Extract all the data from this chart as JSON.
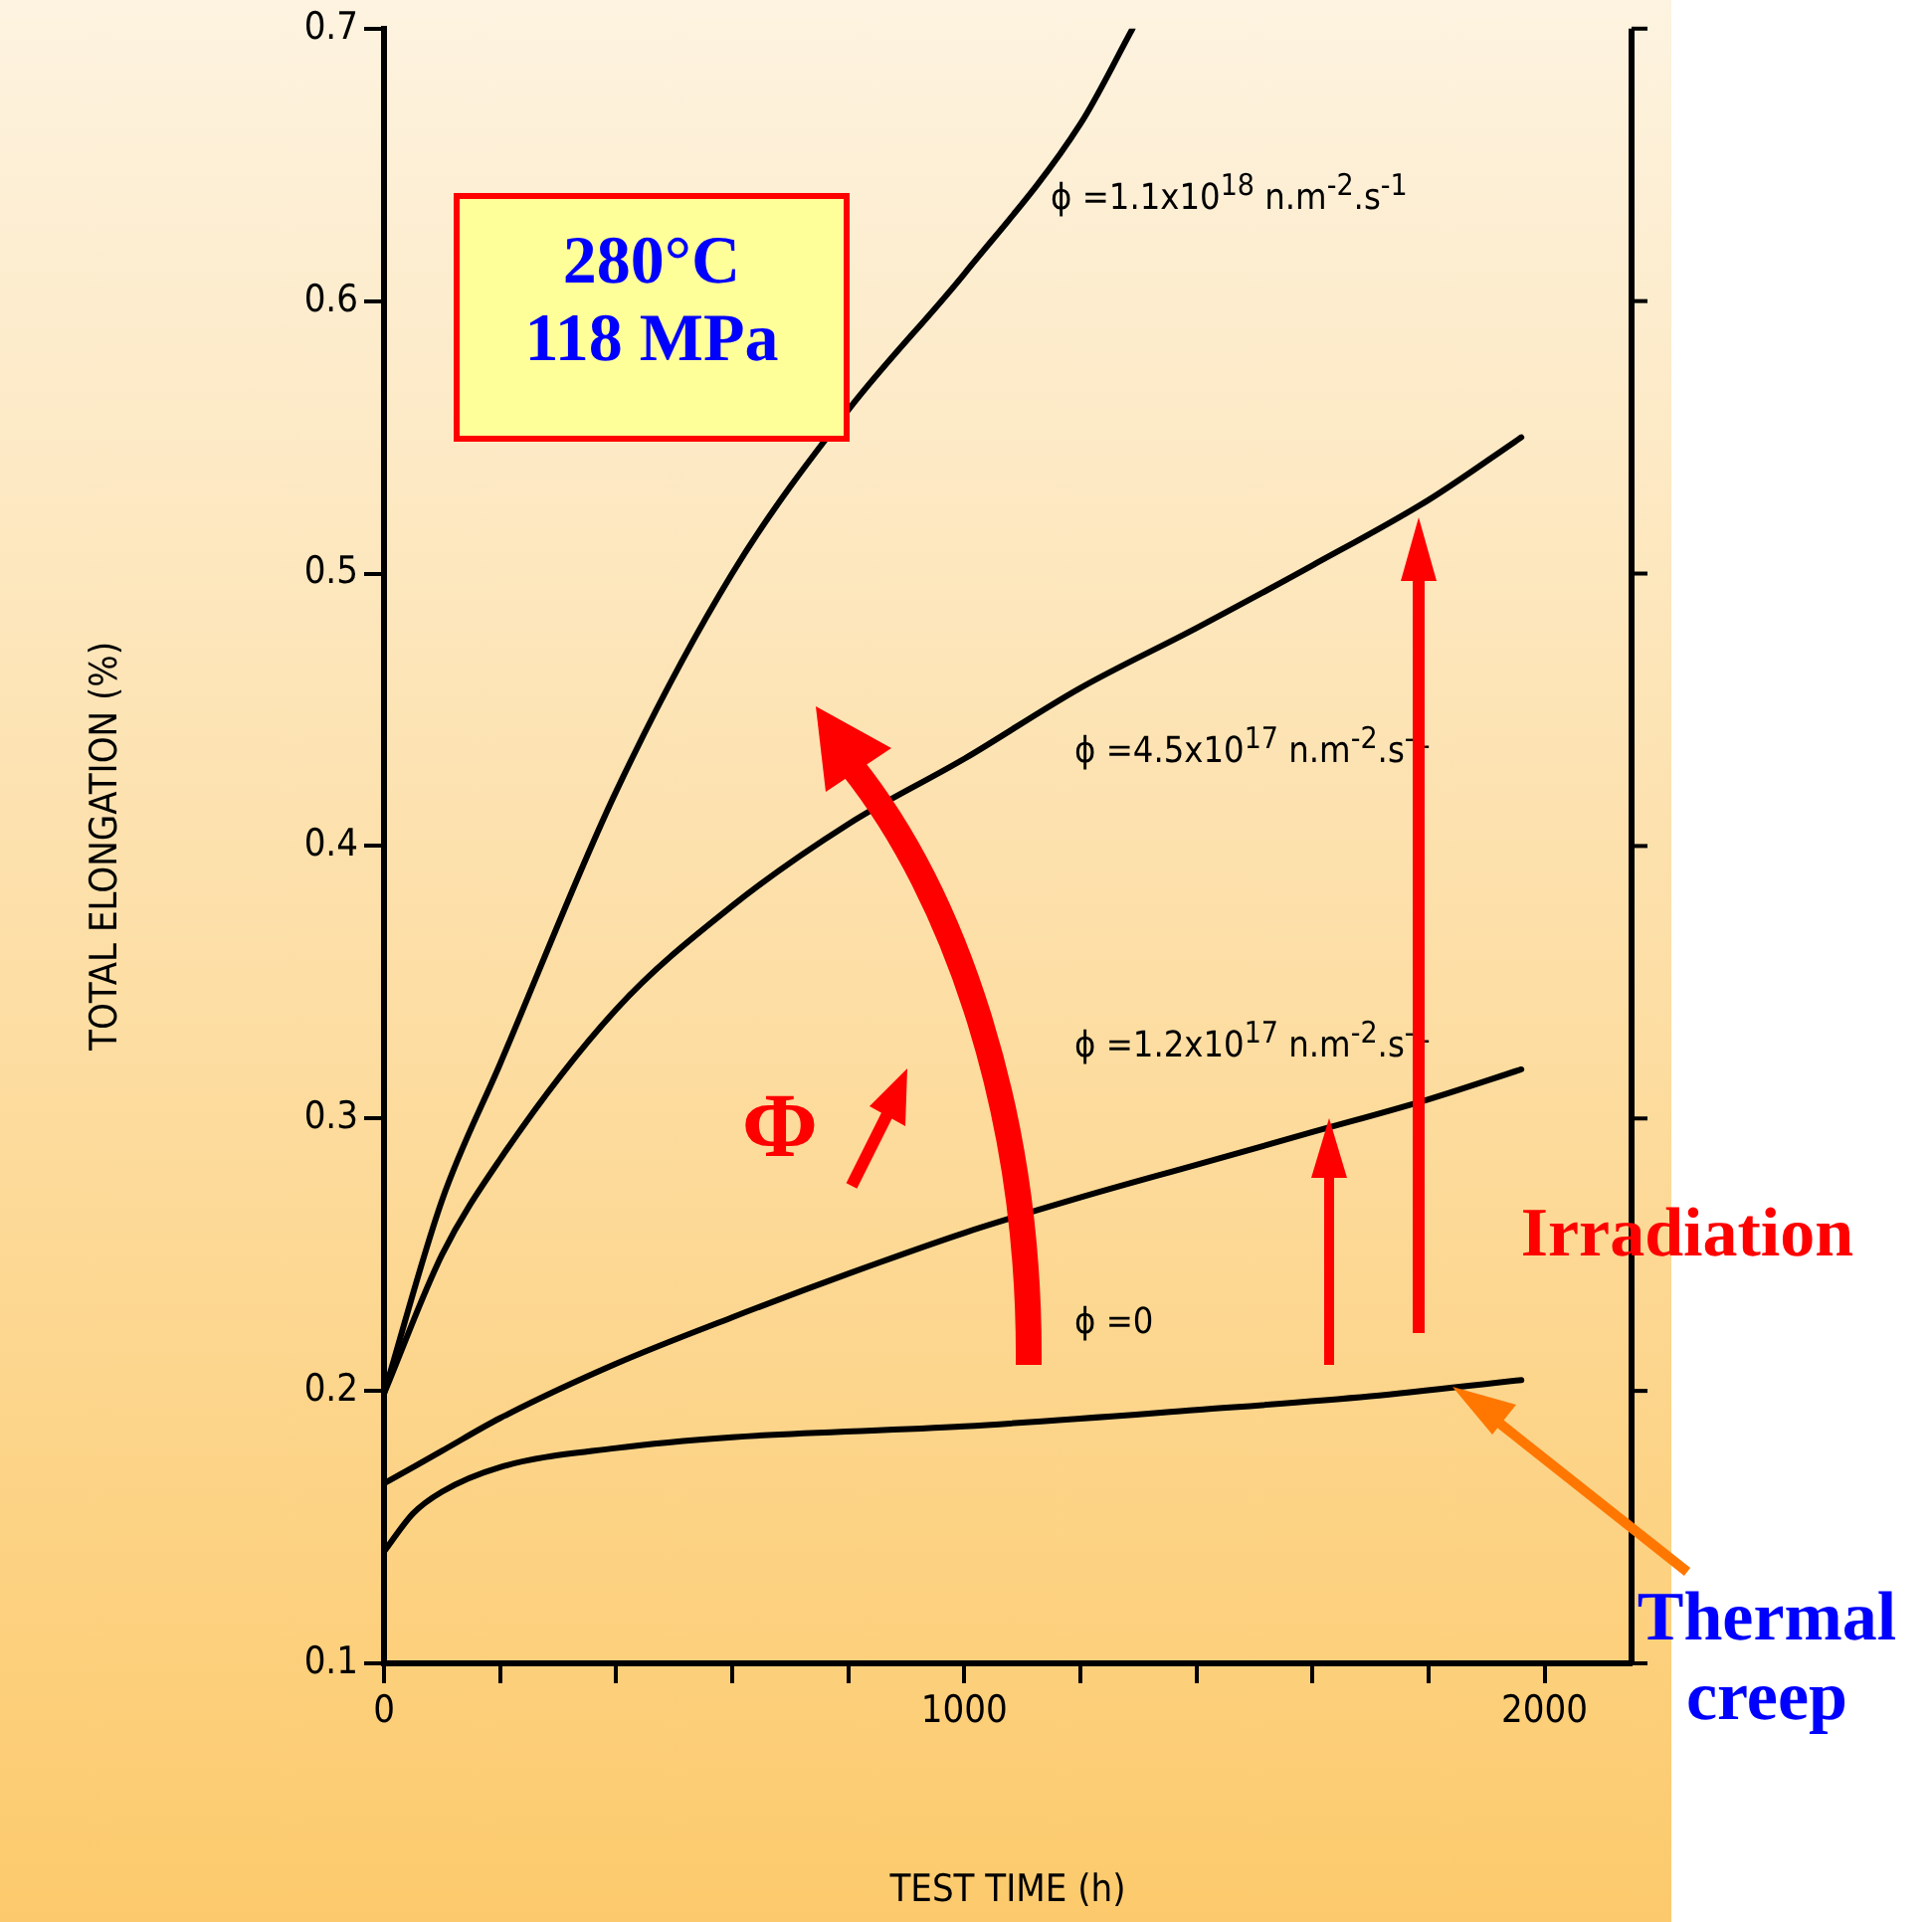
{
  "chart_data": {
    "type": "line",
    "xlabel": "TEST TIME (h)",
    "ylabel": "TOTAL ELONGATION (%)",
    "xlim": [
      0,
      2150
    ],
    "xticks": [
      0,
      {
        "value": 200,
        "label": null
      },
      {
        "value": 400,
        "label": null
      },
      {
        "value": 600,
        "label": null
      },
      {
        "value": 800,
        "label": null
      },
      1000,
      {
        "value": 1200,
        "label": null
      },
      {
        "value": 1400,
        "label": null
      },
      {
        "value": 1600,
        "label": null
      },
      {
        "value": 1800,
        "label": null
      },
      2000
    ],
    "ylim": [
      0.1,
      0.7
    ],
    "yticks": [
      0.1,
      0.2,
      0.3,
      0.4,
      0.5,
      0.6,
      0.7
    ],
    "grid": false,
    "legend": false,
    "marker": "none",
    "line_style": "solid",
    "series": [
      {
        "name": "ϕ =1.1x10$^{18}$  n.m$^{-2}$.s$^{-1}$",
        "color": "#000000",
        "x": [
          0,
          100,
          200,
          400,
          600,
          800,
          1000,
          1200,
          1290
        ],
        "values": [
          0.199,
          0.27,
          0.32,
          0.42,
          0.5,
          0.56,
          0.61,
          0.665,
          0.7
        ]
      },
      {
        "name": "ϕ =4.5x10$^{17}$  n.m$^{-2}$.s$^{-1}$",
        "color": "#000000",
        "x": [
          0,
          100,
          200,
          400,
          600,
          800,
          1000,
          1200,
          1400,
          1600,
          1800,
          1960
        ],
        "values": [
          0.199,
          0.25,
          0.285,
          0.34,
          0.378,
          0.408,
          0.432,
          0.458,
          0.48,
          0.503,
          0.527,
          0.55
        ]
      },
      {
        "name": "ϕ =1.2x10$^{17}$  n.m$^{-2}$.s$^{-1}$",
        "color": "#000000",
        "x": [
          0,
          100,
          200,
          400,
          600,
          800,
          1000,
          1200,
          1400,
          1600,
          1800,
          1960
        ],
        "values": [
          0.166,
          0.178,
          0.19,
          0.21,
          0.227,
          0.243,
          0.258,
          0.271,
          0.283,
          0.295,
          0.307,
          0.318
        ]
      },
      {
        "name": "ϕ =0",
        "color": "#000000",
        "x": [
          0,
          50,
          100,
          200,
          400,
          600,
          1000,
          1400,
          1700,
          1960
        ],
        "values": [
          0.141,
          0.155,
          0.163,
          0.172,
          0.179,
          0.183,
          0.187,
          0.193,
          0.198,
          0.204
        ]
      }
    ],
    "annotations": [
      "280°C\n118 MPa",
      "Φ",
      "Irradiation",
      "Thermal creep"
    ]
  }
}
